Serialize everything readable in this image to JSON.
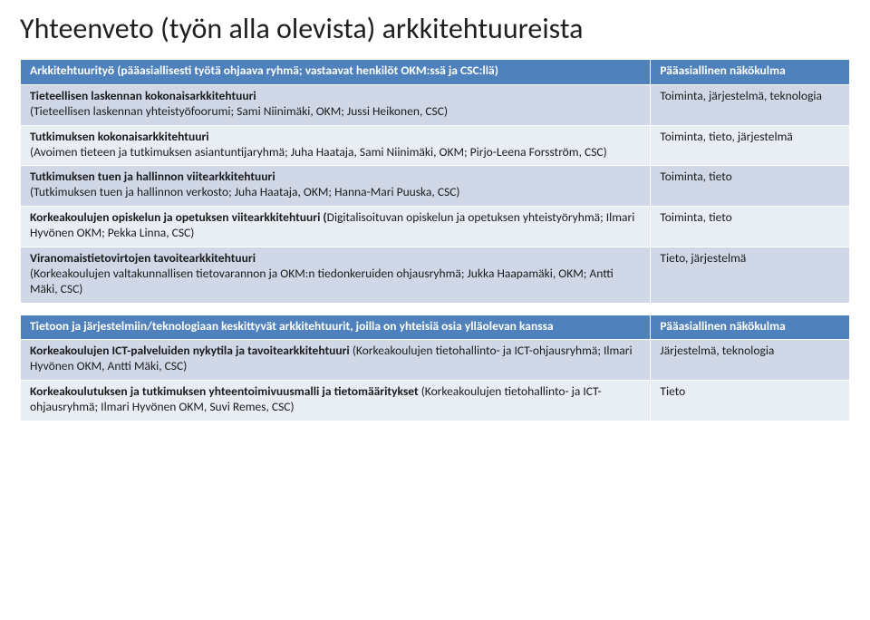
{
  "title": "Yhteenveto (työn alla olevista) arkkitehtuureista",
  "table1": {
    "header": {
      "left": "Arkkitehtuurityö (pääasiallisesti työtä ohjaava ryhmä; vastaavat henkilöt OKM:ssä ja CSC:llä)",
      "right": "Pääasiallinen näkökulma"
    },
    "rows": [
      {
        "left_bold": "Tieteellisen laskennan kokonaisarkkitehtuuri",
        "left_rest": "(Tieteellisen laskennan yhteistyöfoorumi; Sami Niinimäki, OKM; Jussi Heikonen, CSC)",
        "right": "Toiminta, järjestelmä, teknologia"
      },
      {
        "left_bold": "Tutkimuksen kokonaisarkkitehtuuri",
        "left_rest": "(Avoimen tieteen ja tutkimuksen asiantuntijaryhmä; Juha Haataja, Sami Niinimäki, OKM; Pirjo-Leena Forsström, CSC)",
        "right": "Toiminta, tieto, järjestelmä"
      },
      {
        "left_bold": "Tutkimuksen tuen ja hallinnon viitearkkitehtuuri",
        "left_rest": "(Tutkimuksen tuen ja hallinnon verkosto; Juha Haataja, OKM; Hanna-Mari Puuska, CSC)",
        "right": "Toiminta, tieto"
      },
      {
        "left_pre": "Korkeakoulujen opiskelun ja opetuksen viitearkkitehtuuri (",
        "left_rest2": "Digitalisoituvan opiskelun ja opetuksen yhteistyöryhmä; Ilmari Hyvönen OKM; Pekka Linna, CSC)",
        "right": "Toiminta, tieto"
      },
      {
        "left_bold": "Viranomaistietovirtojen tavoitearkkitehtuuri",
        "left_rest": "(Korkeakoulujen valtakunnallisen tietovarannon ja OKM:n tiedonkeruiden ohjausryhmä; Jukka Haapamäki, OKM; Antti Mäki, CSC)",
        "right": "Tieto, järjestelmä"
      }
    ]
  },
  "table2": {
    "header": {
      "left": "Tietoon ja järjestelmiin/teknologiaan keskittyvät arkkitehtuurit, joilla on yhteisiä osia ylläolevan kanssa",
      "right": "Pääasiallinen näkökulma"
    },
    "rows": [
      {
        "left_pre": "Korkeakoulujen ICT-palveluiden nykytila ja tavoitearkkitehtuuri ",
        "left_rest2": "(Korkeakoulujen tietohallinto- ja ICT-ohjausryhmä; Ilmari Hyvönen OKM, Antti Mäki, CSC)",
        "right": "Järjestelmä, teknologia"
      },
      {
        "left_pre": "Korkeakoulutuksen ja tutkimuksen yhteentoimivuusmalli  ja tietomääritykset ",
        "left_rest2": "(Korkeakoulujen tietohallinto- ja ICT-ohjausryhmä; Ilmari Hyvönen OKM, Suvi Remes, CSC)",
        "right": "Tieto"
      }
    ]
  }
}
